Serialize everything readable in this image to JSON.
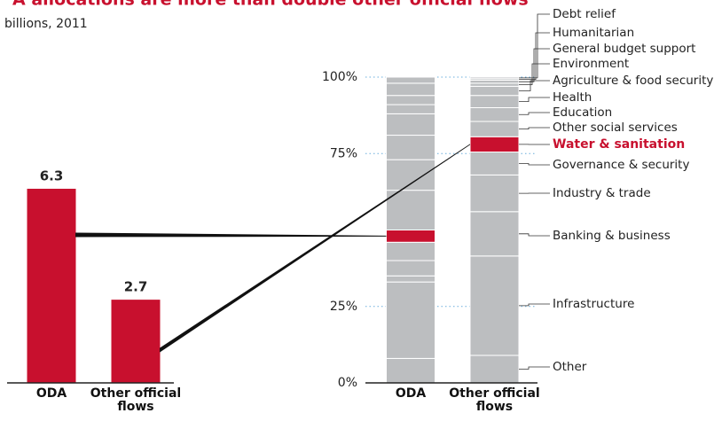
{
  "chart_data": [
    {
      "type": "bar",
      "title": "A allocations are more than double other official flows",
      "subtitle": "billions, 2011",
      "categories": [
        "ODA",
        "Other official flows"
      ],
      "values": [
        6.3,
        2.7
      ],
      "color": "#c8102e",
      "ylim": [
        0,
        8.6
      ]
    },
    {
      "type": "stacked_bar",
      "categories": [
        "ODA",
        "Other official flows"
      ],
      "series": [
        {
          "name": "Other",
          "color": "#bcbec0",
          "values": [
            8,
            9
          ]
        },
        {
          "name": "Infrastructure",
          "color": "#bcbec0",
          "values": [
            25,
            32.5
          ]
        },
        {
          "name": "Banking & business",
          "color": "#bcbec0",
          "values": [
            2,
            14.5
          ]
        },
        {
          "name": "Industry & trade",
          "color": "#bcbec0",
          "values": [
            5,
            12
          ]
        },
        {
          "name": "Governance & security",
          "color": "#bcbec0",
          "values": [
            6,
            7.5
          ]
        },
        {
          "name": "Water & sanitation",
          "color": "#c8102e",
          "values": [
            4,
            5
          ]
        },
        {
          "name": "Other social services",
          "color": "#bcbec0",
          "values": [
            13,
            5
          ]
        },
        {
          "name": "Education",
          "color": "#bcbec0",
          "values": [
            10,
            4.5
          ]
        },
        {
          "name": "Health",
          "color": "#bcbec0",
          "values": [
            8,
            4
          ]
        },
        {
          "name": "Agriculture & food security",
          "color": "#bcbec0",
          "values": [
            7,
            3
          ]
        },
        {
          "name": "Environment",
          "color": "#bcbec0",
          "values": [
            3,
            1
          ]
        },
        {
          "name": "General budget support",
          "color": "#bcbec0",
          "values": [
            3,
            1
          ]
        },
        {
          "name": "Humanitarian",
          "color": "#bcbec0",
          "values": [
            4,
            0.5
          ]
        },
        {
          "name": "Debt relief",
          "color": "#bcbec0",
          "values": [
            2,
            0.5
          ]
        }
      ],
      "ylim": [
        0,
        100
      ],
      "yticks": [
        {
          "value": 0,
          "label": "0%"
        },
        {
          "value": 25,
          "label": "25%"
        },
        {
          "value": 75,
          "label": "75%"
        },
        {
          "value": 100,
          "label": "100%"
        }
      ],
      "grid": true
    }
  ]
}
